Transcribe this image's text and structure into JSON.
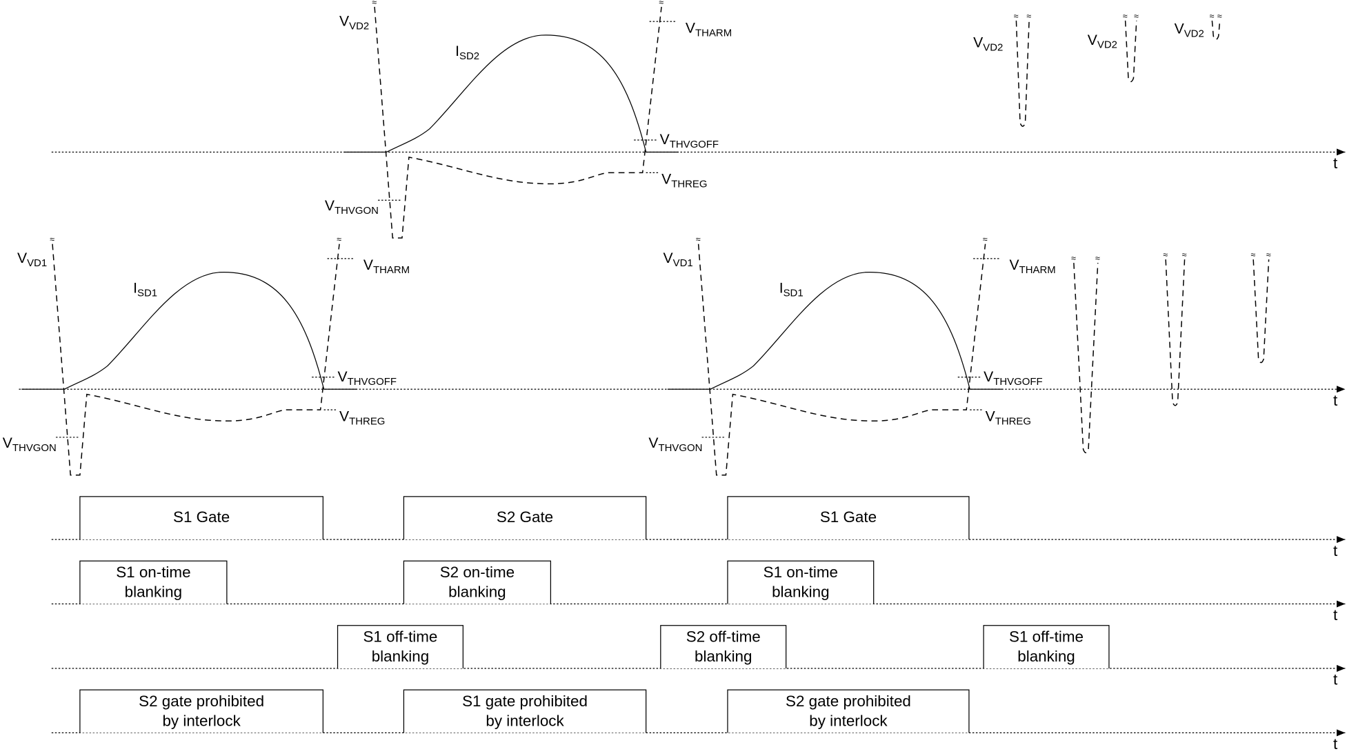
{
  "axis_label": "t",
  "waveforms": {
    "top": {
      "vd": {
        "main": "V",
        "sub": "VD2"
      },
      "isd": {
        "main": "I",
        "sub": "SD2"
      },
      "tharm": {
        "main": "V",
        "sub": "THARM"
      },
      "thvgoff": {
        "main": "V",
        "sub": "THVGOFF"
      },
      "threg": {
        "main": "V",
        "sub": "THREG"
      },
      "thvgon": {
        "main": "V",
        "sub": "THVGON"
      },
      "dip_labels": [
        {
          "main": "V",
          "sub": "VD2"
        },
        {
          "main": "V",
          "sub": "VD2"
        },
        {
          "main": "V",
          "sub": "VD2"
        }
      ]
    },
    "mid_left": {
      "vd": {
        "main": "V",
        "sub": "VD1"
      },
      "isd": {
        "main": "I",
        "sub": "SD1"
      },
      "tharm": {
        "main": "V",
        "sub": "THARM"
      },
      "thvgoff": {
        "main": "V",
        "sub": "THVGOFF"
      },
      "threg": {
        "main": "V",
        "sub": "THREG"
      },
      "thvgon": {
        "main": "V",
        "sub": "THVGON"
      }
    },
    "mid_right": {
      "vd": {
        "main": "V",
        "sub": "VD1"
      },
      "isd": {
        "main": "I",
        "sub": "SD1"
      },
      "tharm": {
        "main": "V",
        "sub": "THARM"
      },
      "thvgoff": {
        "main": "V",
        "sub": "THVGOFF"
      },
      "threg": {
        "main": "V",
        "sub": "THREG"
      },
      "thvgon": {
        "main": "V",
        "sub": "THVGON"
      }
    }
  },
  "rows": [
    {
      "boxes": [
        [
          "S1 Gate"
        ],
        [
          "S2 Gate"
        ],
        [
          "S1 Gate"
        ]
      ]
    },
    {
      "boxes": [
        [
          "S1 on-time",
          "blanking"
        ],
        [
          "S2 on-time",
          "blanking"
        ],
        [
          "S1 on-time",
          "blanking"
        ]
      ]
    },
    {
      "boxes": [
        [
          "S1 off-time",
          "blanking"
        ],
        [
          "S2 off-time",
          "blanking"
        ],
        [
          "S1 off-time",
          "blanking"
        ]
      ]
    },
    {
      "boxes": [
        [
          "S2 gate prohibited",
          "by interlock"
        ],
        [
          "S1 gate prohibited",
          "by interlock"
        ],
        [
          "S2 gate prohibited",
          "by interlock"
        ]
      ]
    }
  ]
}
